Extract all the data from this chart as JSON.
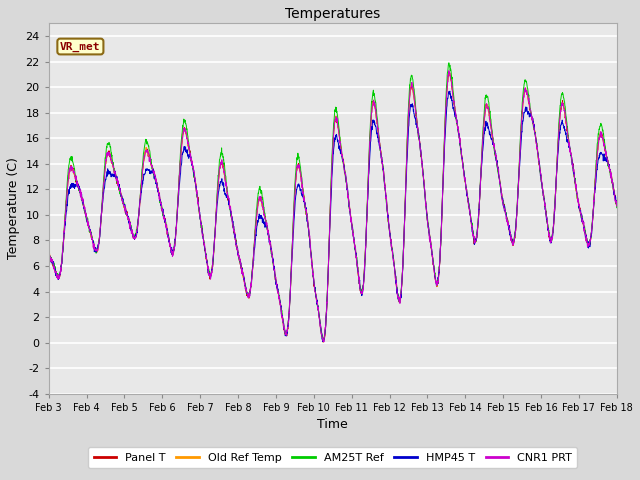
{
  "title": "Temperatures",
  "xlabel": "Time",
  "ylabel": "Temperature (C)",
  "ylim": [
    -4,
    25
  ],
  "yticks": [
    -4,
    -2,
    0,
    2,
    4,
    6,
    8,
    10,
    12,
    14,
    16,
    18,
    20,
    22,
    24
  ],
  "x_labels": [
    "Feb 3",
    "Feb 4",
    "Feb 5",
    "Feb 6",
    "Feb 7",
    "Feb 8",
    "Feb 9",
    "Feb 10",
    "Feb 11",
    "Feb 12",
    "Feb 13",
    "Feb 14",
    "Feb 15",
    "Feb 16",
    "Feb 17",
    "Feb 18"
  ],
  "annotation_text": "VR_met",
  "series": [
    {
      "label": "Panel T",
      "color": "#cc0000"
    },
    {
      "label": "Old Ref Temp",
      "color": "#ff9900"
    },
    {
      "label": "AM25T Ref",
      "color": "#00cc00"
    },
    {
      "label": "HMP45 T",
      "color": "#0000cc"
    },
    {
      "label": "CNR1 PRT",
      "color": "#cc00cc"
    }
  ],
  "bg_color": "#d9d9d9",
  "plot_bg_color": "#e8e8e8",
  "figsize": [
    6.4,
    4.8
  ],
  "dpi": 100
}
